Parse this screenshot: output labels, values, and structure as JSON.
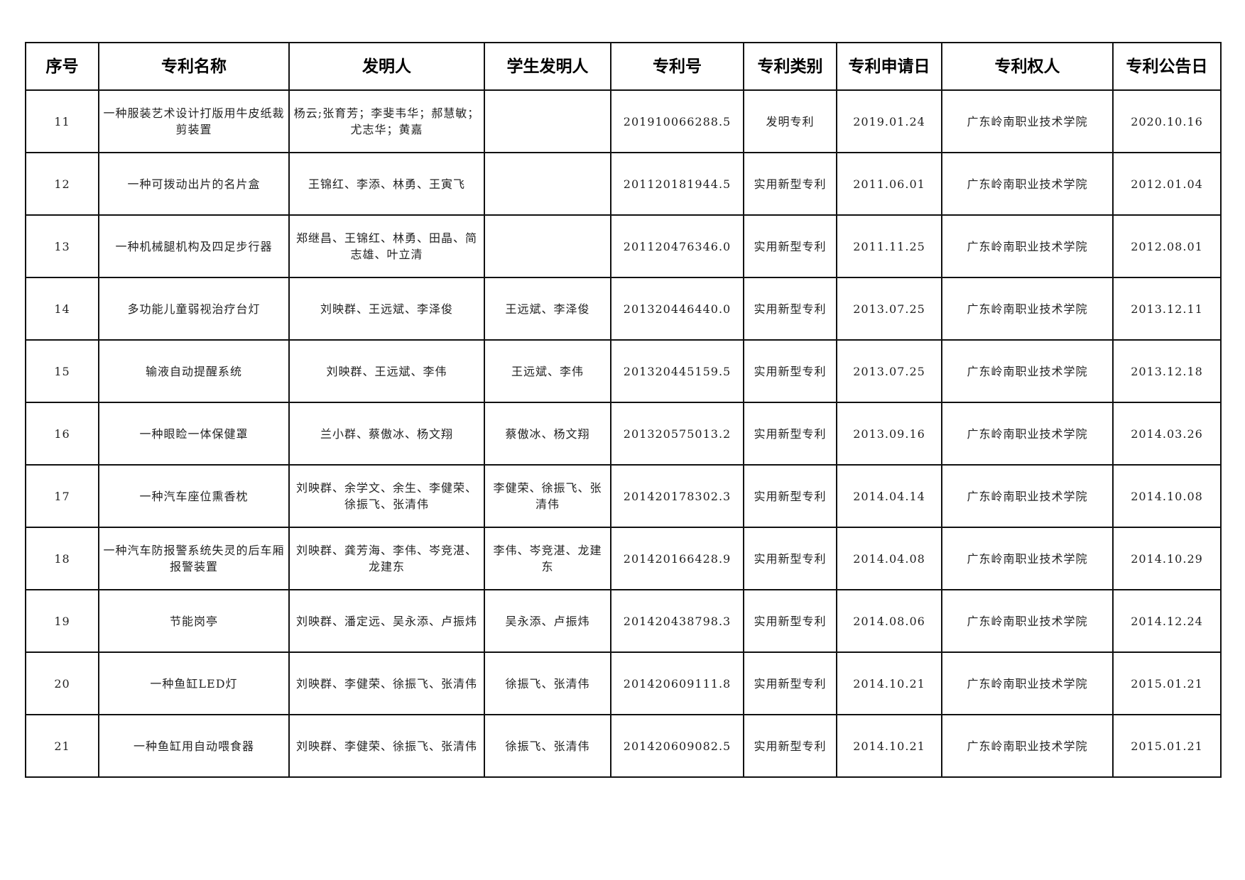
{
  "table": {
    "headers": [
      "序号",
      "专利名称",
      "发明人",
      "学生发明人",
      "专利号",
      "专利类别",
      "专利申请日",
      "专利权人",
      "专利公告日"
    ],
    "rows": [
      [
        "11",
        "一种服装艺术设计打版用牛皮纸裁剪装置",
        "杨云;张育芳；李斐韦华；郝慧敏；尤志华；黄嘉",
        "",
        "201910066288.5",
        "发明专利",
        "2019.01.24",
        "广东岭南职业技术学院",
        "2020.10.16"
      ],
      [
        "12",
        "一种可拨动出片的名片盒",
        "王锦红、李添、林勇、王寅飞",
        "",
        "201120181944.5",
        "实用新型专利",
        "2011.06.01",
        "广东岭南职业技术学院",
        "2012.01.04"
      ],
      [
        "13",
        "一种机械腿机构及四足步行器",
        "郑继昌、王锦红、林勇、田晶、简志雄、叶立清",
        "",
        "201120476346.0",
        "实用新型专利",
        "2011.11.25",
        "广东岭南职业技术学院",
        "2012.08.01"
      ],
      [
        "14",
        "多功能儿童弱视治疗台灯",
        "刘映群、王远斌、李泽俊",
        "王远斌、李泽俊",
        "201320446440.0",
        "实用新型专利",
        "2013.07.25",
        "广东岭南职业技术学院",
        "2013.12.11"
      ],
      [
        "15",
        "输液自动提醒系统",
        "刘映群、王远斌、李伟",
        "王远斌、李伟",
        "201320445159.5",
        "实用新型专利",
        "2013.07.25",
        "广东岭南职业技术学院",
        "2013.12.18"
      ],
      [
        "16",
        "一种眼睑一体保健罩",
        "兰小群、蔡傲冰、杨文翔",
        "蔡傲冰、杨文翔",
        "201320575013.2",
        "实用新型专利",
        "2013.09.16",
        "广东岭南职业技术学院",
        "2014.03.26"
      ],
      [
        "17",
        "一种汽车座位熏香枕",
        "刘映群、余学文、余生、李健荣、徐振飞、张清伟",
        "李健荣、徐振飞、张清伟",
        "201420178302.3",
        "实用新型专利",
        "2014.04.14",
        "广东岭南职业技术学院",
        "2014.10.08"
      ],
      [
        "18",
        "一种汽车防报警系统失灵的后车厢报警装置",
        "刘映群、龚芳海、李伟、岑竞湛、龙建东",
        "李伟、岑竞湛、龙建东",
        "201420166428.9",
        "实用新型专利",
        "2014.04.08",
        "广东岭南职业技术学院",
        "2014.10.29"
      ],
      [
        "19",
        "节能岗亭",
        "刘映群、潘定远、吴永添、卢振炜",
        "吴永添、卢振炜",
        "201420438798.3",
        "实用新型专利",
        "2014.08.06",
        "广东岭南职业技术学院",
        "2014.12.24"
      ],
      [
        "20",
        "一种鱼缸LED灯",
        "刘映群、李健荣、徐振飞、张清伟",
        "徐振飞、张清伟",
        "201420609111.8",
        "实用新型专利",
        "2014.10.21",
        "广东岭南职业技术学院",
        "2015.01.21"
      ],
      [
        "21",
        "一种鱼缸用自动喂食器",
        "刘映群、李健荣、徐振飞、张清伟",
        "徐振飞、张清伟",
        "201420609082.5",
        "实用新型专利",
        "2014.10.21",
        "广东岭南职业技术学院",
        "2015.01.21"
      ]
    ]
  }
}
